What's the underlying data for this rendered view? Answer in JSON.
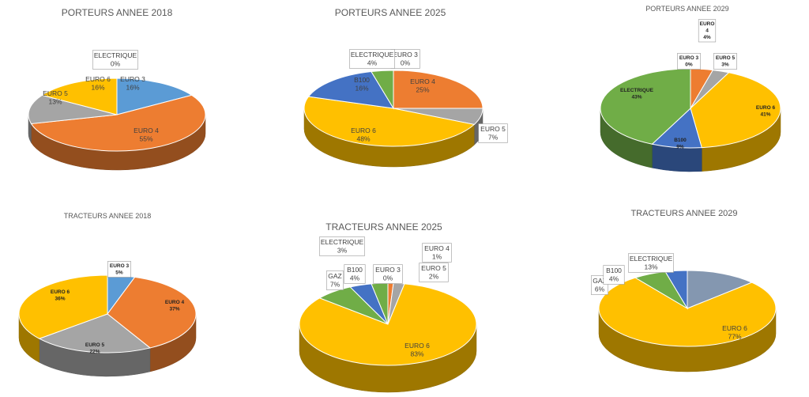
{
  "colors": {
    "EURO 3": "#5B9BD5",
    "EURO 4": "#ED7D31",
    "EURO 5": "#A5A5A5",
    "EURO 6": "#FFC000",
    "B100": "#4472C4",
    "ELECTRIQUE": "#70AD47",
    "GAZ": "#70AD47",
    "ELECTRIQUE_TRACTEURS": "#8497B0"
  },
  "chart_data": [
    {
      "type": "pie",
      "title": "PORTEURS ANNEE 2018",
      "slices": [
        {
          "label": "EURO 3",
          "value": 16,
          "pct": "16%"
        },
        {
          "label": "EURO 4",
          "value": 55,
          "pct": "55%"
        },
        {
          "label": "EURO 5",
          "value": 13,
          "pct": "13%"
        },
        {
          "label": "EURO 6",
          "value": 16,
          "pct": "16%"
        },
        {
          "label": "ELECTRIQUE",
          "value": 0,
          "pct": "0%"
        }
      ]
    },
    {
      "type": "pie",
      "title": "PORTEURS ANNEE 2025",
      "slices": [
        {
          "label": "EURO 3",
          "value": 0,
          "pct": "0%"
        },
        {
          "label": "EURO 4",
          "value": 25,
          "pct": "25%"
        },
        {
          "label": "EURO 5",
          "value": 7,
          "pct": "7%"
        },
        {
          "label": "EURO 6",
          "value": 48,
          "pct": "48%"
        },
        {
          "label": "B100",
          "value": 16,
          "pct": "16%"
        },
        {
          "label": "ELECTRIQUE",
          "value": 4,
          "pct": "4%"
        }
      ]
    },
    {
      "type": "pie",
      "title": "PORTEURS ANNEE 2029",
      "slices": [
        {
          "label": "EURO 3",
          "value": 0,
          "pct": "0%"
        },
        {
          "label": "EURO 4",
          "value": 4,
          "pct": "4%"
        },
        {
          "label": "EURO 5",
          "value": 3,
          "pct": "3%"
        },
        {
          "label": "EURO 6",
          "value": 41,
          "pct": "41%"
        },
        {
          "label": "B100",
          "value": 9,
          "pct": "9%"
        },
        {
          "label": "ELECTRIQUE",
          "value": 43,
          "pct": "43%"
        }
      ]
    },
    {
      "type": "pie",
      "title": "TRACTEURS ANNEE 2018",
      "slices": [
        {
          "label": "EURO 3",
          "value": 5,
          "pct": "5%"
        },
        {
          "label": "EURO 4",
          "value": 37,
          "pct": "37%"
        },
        {
          "label": "EURO 5",
          "value": 22,
          "pct": "22%"
        },
        {
          "label": "EURO 6",
          "value": 36,
          "pct": "36%"
        }
      ]
    },
    {
      "type": "pie",
      "title": "TRACTEURS ANNEE 2025",
      "slices": [
        {
          "label": "EURO 3",
          "value": 0,
          "pct": "0%"
        },
        {
          "label": "EURO 4",
          "value": 1,
          "pct": "1%"
        },
        {
          "label": "EURO 5",
          "value": 2,
          "pct": "2%"
        },
        {
          "label": "EURO 6",
          "value": 83,
          "pct": "83%"
        },
        {
          "label": "GAZ",
          "value": 7,
          "pct": "7%"
        },
        {
          "label": "B100",
          "value": 4,
          "pct": "4%"
        },
        {
          "label": "ELECTRIQUE",
          "value": 3,
          "pct": "3%"
        }
      ]
    },
    {
      "type": "pie",
      "title": "TRACTEURS ANNEE 2029",
      "slices": [
        {
          "label": "EURO 6",
          "value": 77,
          "pct": "77%"
        },
        {
          "label": "GAZ",
          "value": 6,
          "pct": "6%"
        },
        {
          "label": "B100",
          "value": 4,
          "pct": "4%"
        },
        {
          "label": "ELECTRIQUE",
          "value": 13,
          "pct": "13%"
        }
      ]
    }
  ]
}
